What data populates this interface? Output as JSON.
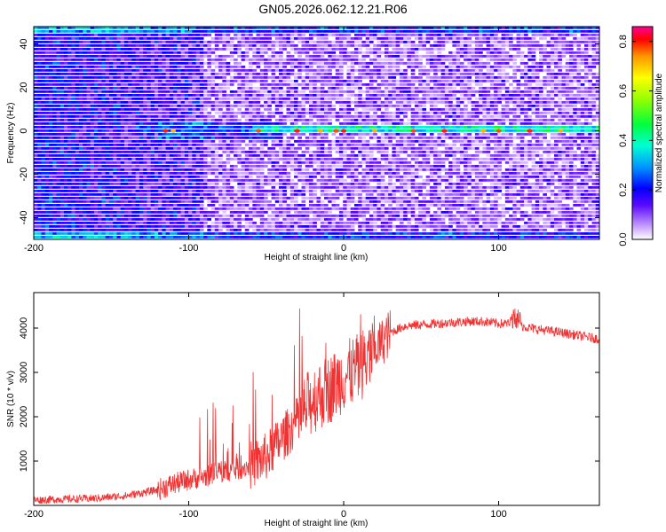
{
  "title": "GN05.2026.062.12.21.R06",
  "chart_data": [
    {
      "type": "heatmap",
      "xlabel": "Height of straight line (km)",
      "ylabel": "Frequency (Hz)",
      "xlim": [
        -200,
        165
      ],
      "ylim": [
        -50,
        48
      ],
      "xticks": [
        -200,
        -100,
        0,
        100
      ],
      "yticks": [
        -40,
        -20,
        0,
        20,
        40
      ],
      "colorbar": {
        "label": "Normalized spectral amplitude",
        "range": [
          0,
          0.86
        ],
        "ticks": [
          0.0,
          0.2,
          0.4,
          0.6,
          0.8
        ]
      },
      "features": [
        {
          "kind": "line",
          "frequency": 0,
          "x_start": -135,
          "x_end": 165
        },
        {
          "kind": "band",
          "frequency": 46,
          "x_start": -200,
          "x_end": 165
        },
        {
          "kind": "band",
          "frequency": -49,
          "x_start": -200,
          "x_end": 165
        }
      ]
    },
    {
      "type": "line",
      "xlabel": "Height of straight line (km)",
      "ylabel": "SNR (10 * v/v)",
      "xlim": [
        -200,
        165
      ],
      "ylim": [
        0,
        4800
      ],
      "xticks": [
        -200,
        -100,
        0,
        100
      ],
      "yticks": [
        1000,
        2000,
        3000,
        4000
      ],
      "color": "#f03232",
      "series": [
        {
          "x": [
            -200,
            -180,
            -160,
            -140,
            -120,
            -110,
            -100,
            -90,
            -80,
            -70,
            -60,
            -50,
            -40,
            -30,
            -20,
            -10,
            0,
            10,
            20,
            30,
            40,
            60,
            80,
            90,
            100,
            110,
            120,
            140,
            165
          ],
          "y": [
            120,
            140,
            160,
            220,
            350,
            480,
            580,
            650,
            750,
            800,
            900,
            1100,
            1500,
            1900,
            2400,
            2600,
            2900,
            3100,
            3500,
            3900,
            4050,
            4100,
            4150,
            4150,
            4100,
            4100,
            4000,
            3900,
            3750
          ]
        }
      ]
    }
  ]
}
